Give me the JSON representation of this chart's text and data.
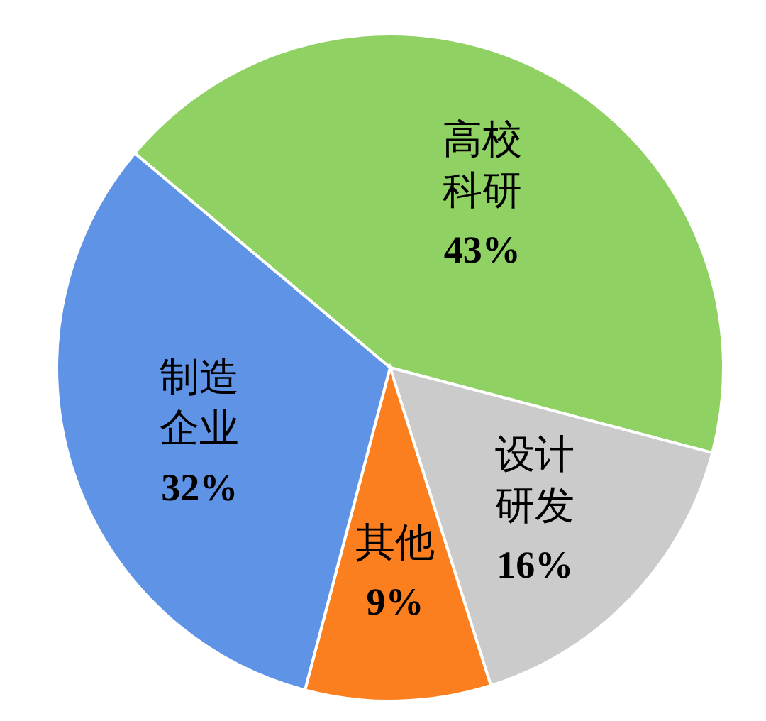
{
  "chart_data": {
    "type": "pie",
    "categories": [
      "高校科研",
      "设计研发",
      "其他",
      "制造企业"
    ],
    "values": [
      43,
      16,
      9,
      32
    ],
    "value_labels": [
      "43%",
      "16%",
      "9%",
      "32%"
    ],
    "colors": [
      "#8fd163",
      "#cbcbcb",
      "#fb7f1f",
      "#5e93e6"
    ]
  }
}
